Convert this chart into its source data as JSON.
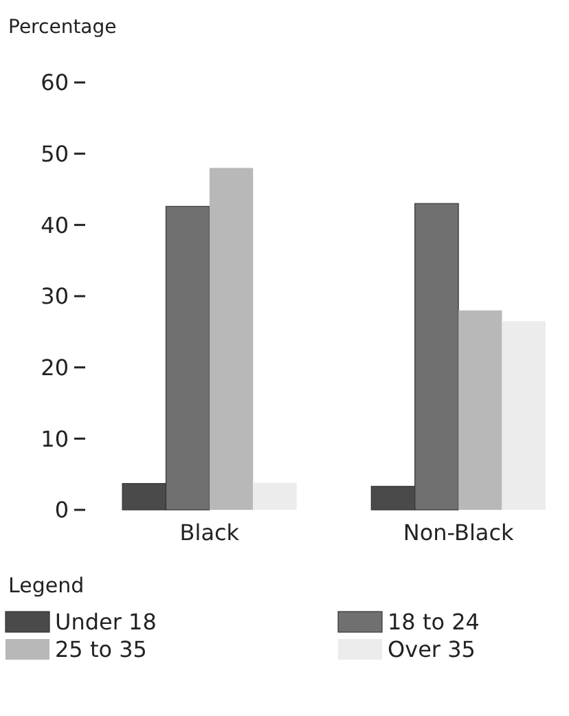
{
  "chart_data": {
    "type": "bar",
    "ylabel": "Percentage",
    "legend_title": "Legend",
    "categories": [
      "Black",
      "Non-Black"
    ],
    "series": [
      {
        "name": "Under 18",
        "color": "#4a4a4a",
        "values": [
          3.7,
          3.3
        ]
      },
      {
        "name": "18 to 24",
        "color": "#707070",
        "values": [
          42.6,
          43
        ]
      },
      {
        "name": "25 to 35",
        "color": "#b8b8b8",
        "values": [
          48,
          28
        ]
      },
      {
        "name": "Over 35",
        "color": "#ececec",
        "values": [
          3.8,
          26.5
        ]
      }
    ],
    "ylim": [
      0,
      60
    ],
    "yticks": [
      0,
      10,
      20,
      30,
      40,
      50,
      60
    ],
    "legend": "bottom"
  }
}
